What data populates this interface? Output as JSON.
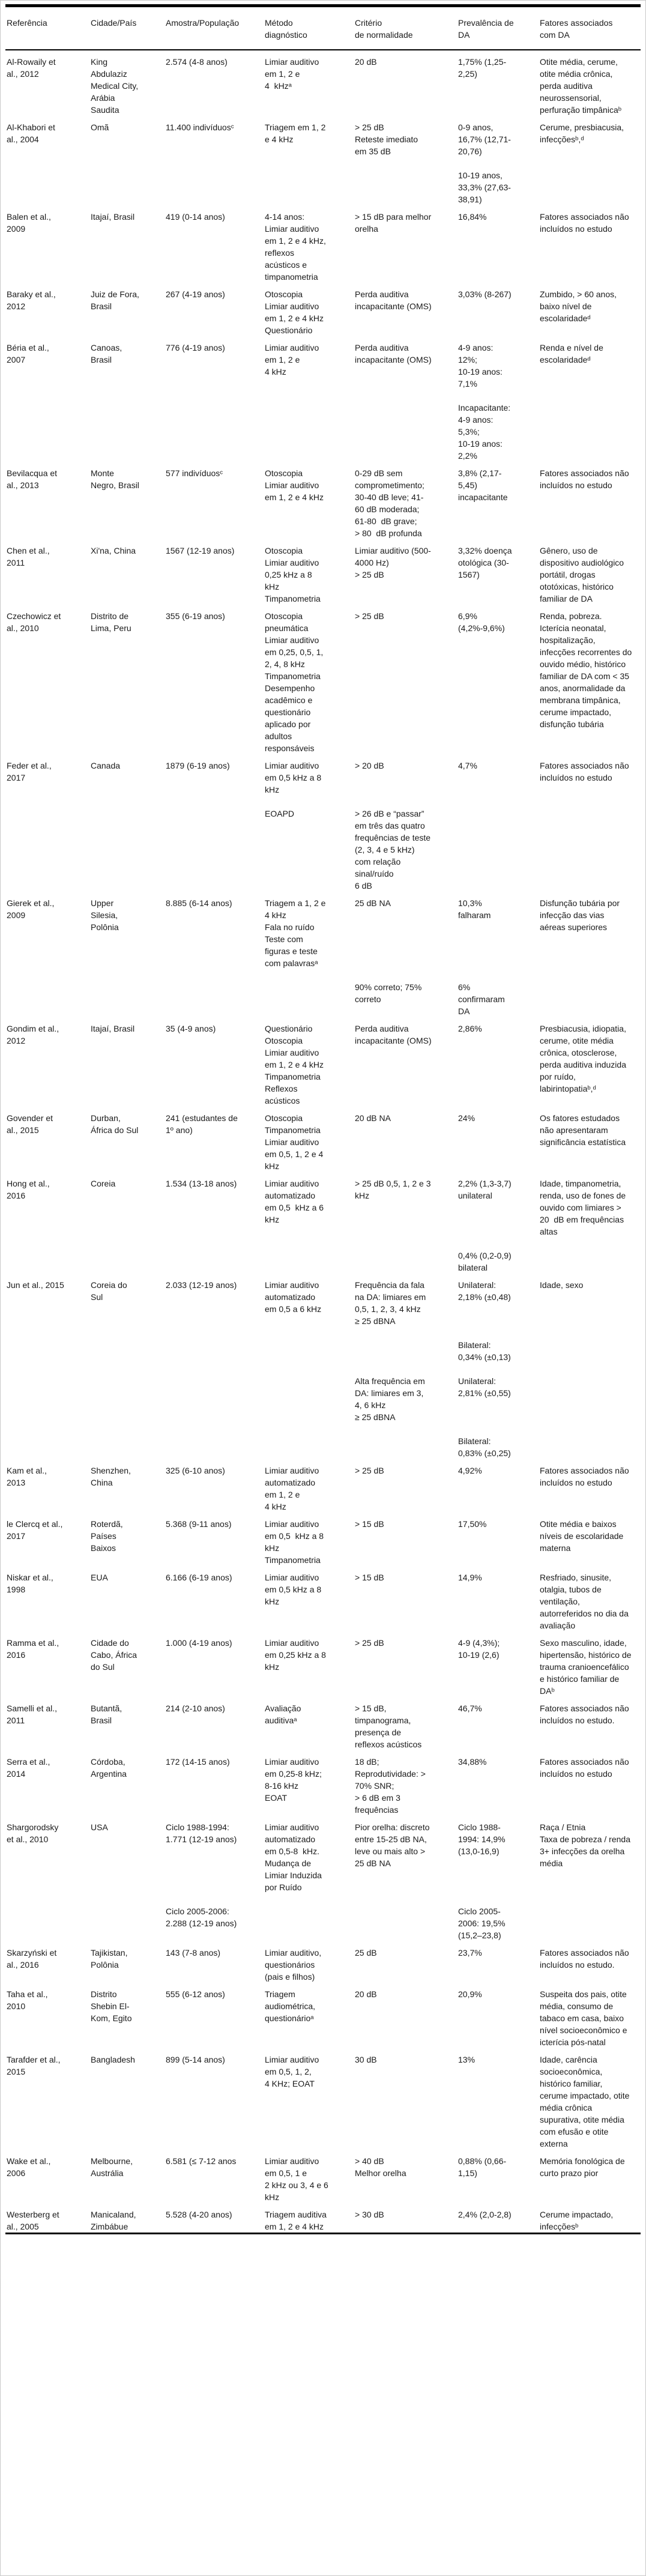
{
  "table": {
    "columns": [
      {
        "key": "reference",
        "label": "Referência"
      },
      {
        "key": "city_country",
        "label": "Cidade/País"
      },
      {
        "key": "sample",
        "label": "Amostra/População"
      },
      {
        "key": "method",
        "label": "Método\ndiagnóstico"
      },
      {
        "key": "criterion",
        "label": "Critério\nde normalidade"
      },
      {
        "key": "prevalence",
        "label": "Prevalência de\nDA"
      },
      {
        "key": "factors",
        "label": "Fatores associados\ncom DA"
      }
    ],
    "studies": [
      {
        "segments": [
          {
            "reference": "Al-Rowaily et al., 2012",
            "city_country": "King Abdulaziz Medical City, Arábia Saudita",
            "sample": "2.574 (4-8 anos)",
            "method": "Limiar auditivo em 1, 2 e\n4  kHzᵃ",
            "criterion": "20 dB",
            "prevalence": "1,75% (1,25-2,25)",
            "factors": "Otite média, cerume, otite média crônica, perda auditiva neurossensorial, perfuração timpânicaᵇ"
          }
        ]
      },
      {
        "segments": [
          {
            "reference": "Al-Khabori et al., 2004",
            "city_country": "Omã",
            "sample": "11.400 indivíduosᶜ",
            "method": "Triagem em 1, 2 e 4 kHz",
            "criterion": "> 25 dB\nReteste imediato em 35 dB",
            "prevalence": "0-9 anos, 16,7% (12,71-20,76)\n\n10-19 anos, 33,3% (27,63-38,91)",
            "factors": "Cerume, presbiacusia, infecçõesᵇ,ᵈ"
          }
        ]
      },
      {
        "segments": [
          {
            "reference": "Balen et al., 2009",
            "city_country": "Itajaí, Brasil",
            "sample": "419 (0-14 anos)",
            "method": "4-14 anos:\nLimiar auditivo em 1, 2 e 4 kHz, reflexos acústicos e timpanometria",
            "criterion": "> 15 dB para melhor orelha",
            "prevalence": "16,84%",
            "factors": "Fatores associados não incluídos no estudo"
          }
        ]
      },
      {
        "segments": [
          {
            "reference": "Baraky et al., 2012",
            "city_country": "Juiz de Fora, Brasil",
            "sample": "267 (4-19 anos)",
            "method": "Otoscopia\nLimiar auditivo em 1, 2 e 4 kHz\nQuestionário",
            "criterion": "Perda auditiva incapacitante (OMS)",
            "prevalence": "3,03% (8-267)",
            "factors": "Zumbido, > 60 anos, baixo nível de escolaridadeᵈ"
          }
        ]
      },
      {
        "segments": [
          {
            "reference": "Béria et al., 2007",
            "city_country": "Canoas, Brasil",
            "sample": "776 (4-19 anos)",
            "method": "Limiar auditivo em 1, 2 e\n4 kHz",
            "criterion": "Perda auditiva incapacitante (OMS)",
            "prevalence": "4-9 anos:\n12%;\n10-19 anos:\n7,1%\n\nIncapacitante:\n4-9 anos:\n5,3%;\n10-19 anos:\n2,2%",
            "factors": "Renda e nível de escolaridadeᵈ"
          }
        ]
      },
      {
        "segments": [
          {
            "reference": "Bevilacqua et al., 2013",
            "city_country": "Monte Negro, Brasil",
            "sample": "577 indivíduosᶜ",
            "method": "Otoscopia\nLimiar auditivo em 1, 2 e 4 kHz",
            "criterion": "0-29 dB sem comprometimento; 30-40 dB leve; 41-60 dB moderada; 61-80  dB grave;\n> 80  dB profunda",
            "prevalence": "3,8% (2,17-5,45) incapacitante",
            "factors": "Fatores associados não incluídos no estudo"
          }
        ]
      },
      {
        "segments": [
          {
            "reference": "Chen et al., 2011",
            "city_country": "Xi'na, China",
            "sample": "1567 (12-19 anos)",
            "method": "Otoscopia\nLimiar auditivo 0,25 kHz a 8 kHz\nTimpanometria",
            "criterion": "Limiar auditivo (500-4000 Hz)\n> 25 dB",
            "prevalence": "3,32% doença otológica (30-1567)",
            "factors": "Gênero, uso de dispositivo audiológico portátil, drogas ototóxicas, histórico familiar de DA"
          }
        ]
      },
      {
        "segments": [
          {
            "reference": "Czechowicz et al., 2010",
            "city_country": "Distrito de Lima, Peru",
            "sample": "355 (6-19 anos)",
            "method": "Otoscopia pneumática\nLimiar auditivo em 0,25, 0,5, 1, 2, 4, 8 kHz\nTimpanometria\nDesempenho acadêmico e questionário aplicado por adultos responsáveis",
            "criterion": "> 25 dB",
            "prevalence": "6,9% (4,2%-9,6%)",
            "factors": "Renda, pobreza.\nIcterícia neonatal, hospitalização, infecções recorrentes do ouvido médio, histórico familiar de DA com < 35 anos, anormalidade da membrana timpânica, cerume impactado, disfunção tubária"
          }
        ]
      },
      {
        "segments": [
          {
            "reference": "Feder et al., 2017",
            "city_country": "Canada",
            "sample": "1879 (6-19 anos)",
            "method": "Limiar auditivo em 0,5 kHz a 8 kHz",
            "criterion": "> 20 dB",
            "prevalence": "4,7%",
            "factors": "Fatores associados não incluídos no estudo"
          },
          {
            "reference": "",
            "city_country": "",
            "sample": "",
            "method": "EOAPD",
            "criterion": "> 26 dB e “passar” em três das quatro frequências de teste (2, 3, 4 e 5 kHz) com relação sinal/ruído\n6 dB",
            "prevalence": "",
            "factors": ""
          }
        ]
      },
      {
        "segments": [
          {
            "reference": "Gierek et al., 2009",
            "city_country": "Upper Silesia, Polônia",
            "sample": "8.885 (6-14 anos)",
            "method": "Triagem a 1, 2 e 4 kHz\nFala no ruído\nTeste com figuras e teste com palavrasᵃ",
            "criterion": "25 dB NA",
            "prevalence": "10,3% falharam",
            "factors": "Disfunção tubária por infecção das vias aéreas superiores"
          },
          {
            "reference": "",
            "city_country": "",
            "sample": "",
            "method": "",
            "criterion": "90% correto; 75% correto",
            "prevalence": "6% confirmaram DA",
            "factors": ""
          }
        ]
      },
      {
        "segments": [
          {
            "reference": "Gondim et al., 2012",
            "city_country": "Itajaí, Brasil",
            "sample": "35 (4-9 anos)",
            "method": "Questionário\nOtoscopia\nLimiar auditivo em 1, 2 e 4 kHz\nTimpanometria\nReflexos acústicos",
            "criterion": "Perda auditiva incapacitante (OMS)",
            "prevalence": "2,86%",
            "factors": "Presbiacusia, idiopatia, cerume, otite média crônica, otosclerose, perda auditiva induzida por ruído, labirintopatiaᵇ,ᵈ"
          }
        ]
      },
      {
        "segments": [
          {
            "reference": "Govender et al., 2015",
            "city_country": "Durban, África do Sul",
            "sample": "241 (estudantes de 1º ano)",
            "method": "Otoscopia\nTimpanometria\nLimiar auditivo em 0,5, 1, 2 e 4 kHz",
            "criterion": "20 dB NA",
            "prevalence": "24%",
            "factors": "Os fatores estudados não apresentaram significância estatística"
          }
        ]
      },
      {
        "segments": [
          {
            "reference": "Hong et al., 2016",
            "city_country": "Coreia",
            "sample": "1.534 (13-18 anos)",
            "method": "Limiar auditivo automatizado em 0,5  kHz a 6 kHz",
            "criterion": "> 25 dB 0,5, 1, 2 e 3 kHz",
            "prevalence": "2,2% (1,3-3,7) unilateral",
            "factors": "Idade, timpanometria, renda, uso de fones de ouvido com limiares > 20  dB em frequências altas"
          },
          {
            "reference": "",
            "city_country": "",
            "sample": "",
            "method": "",
            "criterion": "",
            "prevalence": "0,4% (0,2-0,9) bilateral",
            "factors": ""
          }
        ]
      },
      {
        "segments": [
          {
            "reference": "Jun et al., 2015",
            "city_country": "Coreia do Sul",
            "sample": "2.033 (12-19 anos)",
            "method": "Limiar auditivo automatizado em 0,5 a 6 kHz",
            "criterion": "Frequência da fala na DA: limiares em 0,5, 1, 2, 3, 4 kHz\n≥ 25 dBNA",
            "prevalence": "Unilateral: 2,18% (±0,48)",
            "factors": "Idade, sexo"
          },
          {
            "reference": "",
            "city_country": "",
            "sample": "",
            "method": "",
            "criterion": "",
            "prevalence": "Bilateral: 0,34% (±0,13)",
            "factors": ""
          },
          {
            "reference": "",
            "city_country": "",
            "sample": "",
            "method": "",
            "criterion": "Alta frequência em DA: limiares em 3, 4, 6 kHz\n≥ 25 dBNA",
            "prevalence": "Unilateral: 2,81% (±0,55)",
            "factors": ""
          },
          {
            "reference": "",
            "city_country": "",
            "sample": "",
            "method": "",
            "criterion": "",
            "prevalence": "Bilateral: 0,83% (±0,25)",
            "factors": ""
          }
        ]
      },
      {
        "segments": [
          {
            "reference": "Kam et al., 2013",
            "city_country": "Shenzhen, China",
            "sample": "325 (6-10 anos)",
            "method": "Limiar auditivo automatizado em 1, 2 e\n4 kHz",
            "criterion": "> 25 dB",
            "prevalence": "4,92%",
            "factors": "Fatores associados não incluídos no estudo"
          }
        ]
      },
      {
        "segments": [
          {
            "reference": "le Clercq et al., 2017",
            "city_country": "Roterdã, Países Baixos",
            "sample": "5.368 (9-11 anos)",
            "method": "Limiar auditivo em 0,5  kHz a 8 kHz\nTimpanometria",
            "criterion": "> 15 dB",
            "prevalence": "17,50%",
            "factors": "Otite média e baixos níveis de escolaridade materna"
          }
        ]
      },
      {
        "segments": [
          {
            "reference": "Niskar et al., 1998",
            "city_country": "EUA",
            "sample": "6.166 (6-19 anos)",
            "method": "Limiar auditivo em 0,5 kHz a 8 kHz",
            "criterion": "> 15 dB",
            "prevalence": "14,9%",
            "factors": "Resfriado, sinusite, otalgia, tubos de ventilação, autorreferidos no dia da avaliação"
          }
        ]
      },
      {
        "segments": [
          {
            "reference": "Ramma et al., 2016",
            "city_country": "Cidade do Cabo, África do Sul",
            "sample": "1.000 (4-19 anos)",
            "method": "Limiar auditivo em 0,25 kHz a 8 kHz",
            "criterion": "> 25 dB",
            "prevalence": "4-9 (4,3%);\n10-19 (2,6)",
            "factors": "Sexo masculino, idade, hipertensão, histórico de trauma cranioencefálico e histórico familiar de DAᵇ"
          }
        ]
      },
      {
        "segments": [
          {
            "reference": "Samelli et al., 2011",
            "city_country": "Butantã, Brasil",
            "sample": "214 (2-10 anos)",
            "method": "Avaliação auditivaᵃ",
            "criterion": "> 15 dB, timpanograma, presença de reflexos acústicos",
            "prevalence": "46,7%",
            "factors": "Fatores associados não incluídos no estudo."
          }
        ]
      },
      {
        "segments": [
          {
            "reference": "Serra et al., 2014",
            "city_country": "Córdoba, Argentina",
            "sample": "172 (14-15 anos)",
            "method": "Limiar auditivo em 0,25-8 kHz; 8-16 kHz\nEOAT",
            "criterion": "18 dB;\nReprodutividade: > 70% SNR;\n> 6 dB em 3 frequências",
            "prevalence": "34,88%",
            "factors": "Fatores associados não incluídos no estudo"
          }
        ]
      },
      {
        "segments": [
          {
            "reference": "Shargorodsky et al., 2010",
            "city_country": "USA",
            "sample": "Ciclo 1988-1994: 1.771 (12-19 anos)",
            "method": "Limiar auditivo automatizado em 0,5-8  kHz.\nMudança de Limiar Induzida por Ruído",
            "criterion": "Pior orelha: discreto entre 15-25 dB NA, leve ou mais alto > 25 dB NA",
            "prevalence": "Ciclo 1988-1994: 14,9% (13,0-16,9)",
            "factors": "Raça / Etnia\nTaxa de pobreza / renda\n3+ infecções da orelha média"
          },
          {
            "reference": "",
            "city_country": "",
            "sample": "Ciclo 2005-2006: 2.288 (12-19 anos)",
            "method": "",
            "criterion": "",
            "prevalence": "Ciclo 2005-2006: 19,5% (15,2–23,8)",
            "factors": ""
          }
        ]
      },
      {
        "segments": [
          {
            "reference": "Skarzyński et al., 2016",
            "city_country": "Tajikistan, Polônia",
            "sample": "143 (7-8 anos)",
            "method": "Limiar auditivo, questionários (pais e filhos)",
            "criterion": "25 dB",
            "prevalence": "23,7%",
            "factors": "Fatores associados não incluídos no estudo."
          }
        ]
      },
      {
        "segments": [
          {
            "reference": "Taha et al., 2010",
            "city_country": "Distrito Shebin El-Kom, Egito",
            "sample": "555 (6-12 anos)",
            "method": "Triagem audiométrica, questionárioᵃ",
            "criterion": "20 dB",
            "prevalence": "20,9%",
            "factors": "Suspeita dos pais, otite média, consumo de tabaco em casa, baixo nível socioeconômico e icterícia pós-natal"
          }
        ]
      },
      {
        "segments": [
          {
            "reference": "Tarafder et al., 2015",
            "city_country": "Bangladesh",
            "sample": "899 (5-14 anos)",
            "method": "Limiar auditivo em 0,5, 1, 2,\n4 KHz; EOAT",
            "criterion": "30 dB",
            "prevalence": "13%",
            "factors": "Idade, carência socioeconômica, histórico familiar, cerume impactado, otite média crônica supurativa, otite média com efusão e otite externa"
          }
        ]
      },
      {
        "segments": [
          {
            "reference": "Wake et al., 2006",
            "city_country": "Melbourne, Austrália",
            "sample": "6.581 (≤ 7-12 anos",
            "method": "Limiar auditivo em 0,5, 1 e\n2 kHz ou 3, 4 e 6 kHz",
            "criterion": "> 40 dB\nMelhor orelha",
            "prevalence": "0,88% (0,66-1,15)",
            "factors": "Memória fonológica de curto prazo pior"
          }
        ]
      },
      {
        "segments": [
          {
            "reference": "Westerberg et al., 2005",
            "city_country": "Manicaland, Zimbábue",
            "sample": "5.528 (4-20 anos)",
            "method": "Triagem auditiva em 1, 2 e 4 kHz",
            "criterion": "> 30 dB",
            "prevalence": "2,4% (2,0-2,8)",
            "factors": "Cerume impactado, infecçõesᵇ"
          }
        ]
      }
    ]
  }
}
